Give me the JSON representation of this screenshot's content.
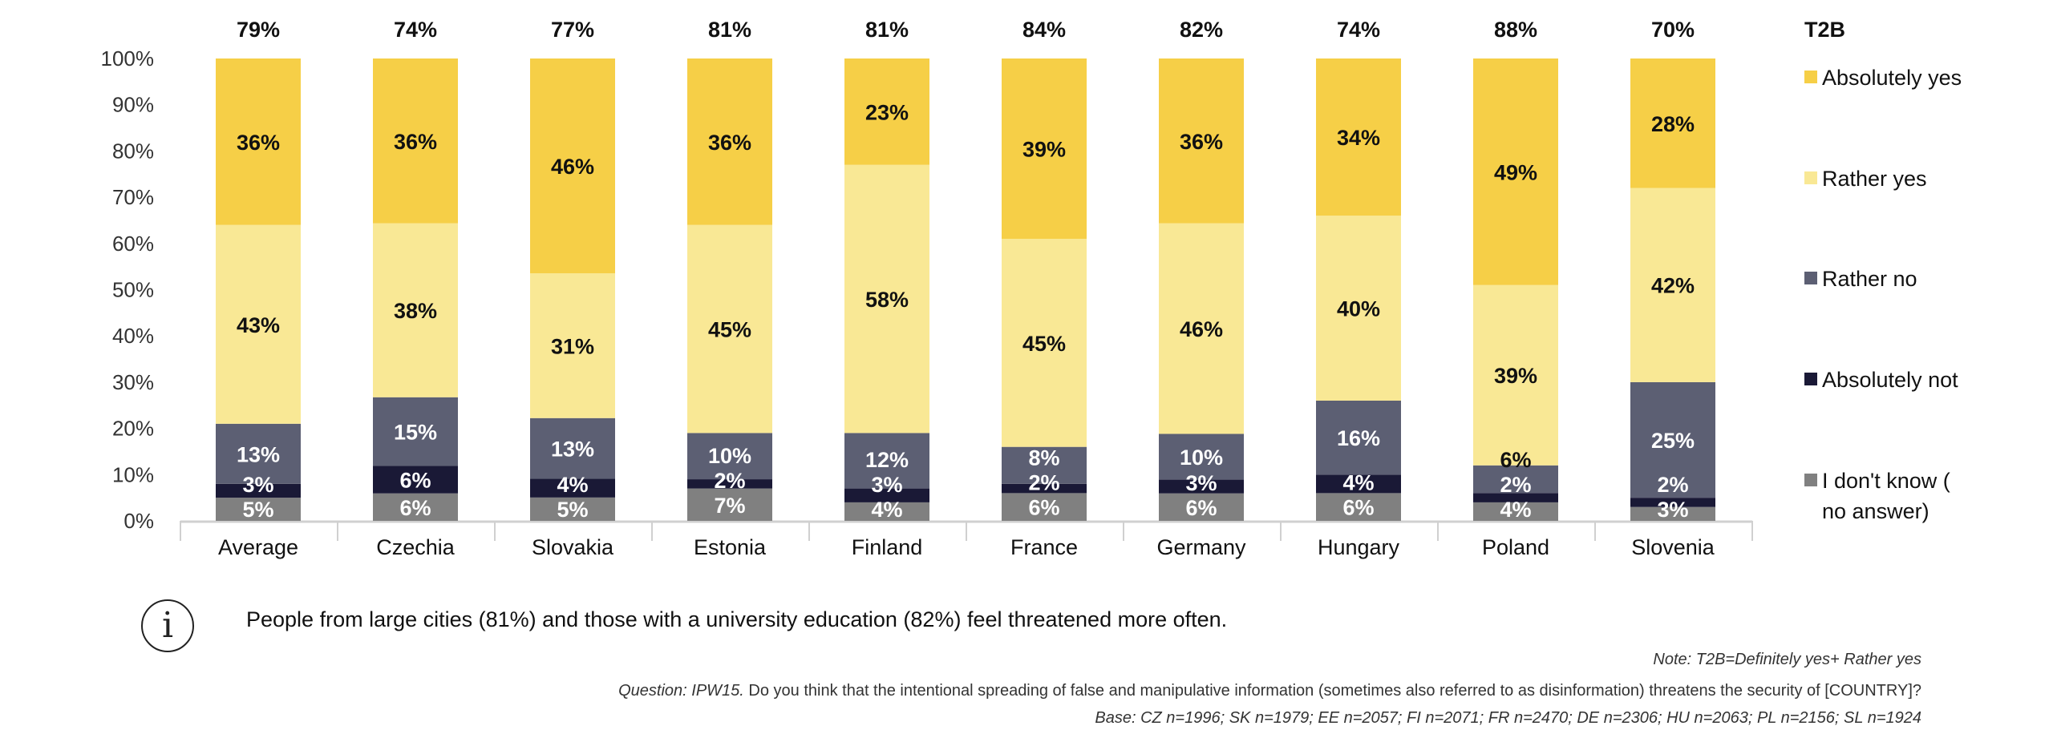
{
  "chart_data": {
    "type": "bar",
    "stacked": true,
    "title": "",
    "xlabel": "",
    "ylabel": "",
    "ylim": [
      0,
      100
    ],
    "yticks": [
      "0%",
      "10%",
      "20%",
      "30%",
      "40%",
      "50%",
      "60%",
      "70%",
      "80%",
      "90%",
      "100%"
    ],
    "categories": [
      "Average",
      "Czechia",
      "Slovakia",
      "Estonia",
      "Finland",
      "France",
      "Germany",
      "Hungary",
      "Poland",
      "Slovenia"
    ],
    "series": [
      {
        "name": "I don't know (no answer)",
        "color": "#808080",
        "label_color": "#ffffff",
        "values": [
          5,
          6,
          5,
          7,
          4,
          6,
          6,
          6,
          4,
          3
        ]
      },
      {
        "name": "Absolutely not",
        "color": "#1A1936",
        "label_color": "#ffffff",
        "values": [
          3,
          6,
          4,
          2,
          3,
          2,
          3,
          4,
          2,
          2
        ]
      },
      {
        "name": "Rather no",
        "color": "#5C5F73",
        "label_color": "#ffffff",
        "values": [
          13,
          15,
          13,
          10,
          12,
          8,
          10,
          16,
          6,
          25
        ]
      },
      {
        "name": "Rather yes",
        "color": "#F9E895",
        "label_color": "#111111",
        "values": [
          43,
          38,
          31,
          45,
          58,
          45,
          46,
          40,
          39,
          42
        ]
      },
      {
        "name": "Absolutely yes",
        "color": "#F6CF47",
        "label_color": "#111111",
        "values": [
          36,
          36,
          46,
          36,
          23,
          39,
          36,
          34,
          49,
          28
        ]
      }
    ],
    "t2b": {
      "label": "T2B",
      "values": [
        "79%",
        "74%",
        "77%",
        "81%",
        "81%",
        "84%",
        "82%",
        "74%",
        "88%",
        "70%"
      ]
    },
    "legend": {
      "placement": "right",
      "order": [
        "Absolutely yes",
        "Rather yes",
        "Rather no",
        "Absolutely not",
        "I don't know (no answer)"
      ]
    },
    "grid": false
  },
  "footer": {
    "info_text": "People from large cities (81%) and those with a university education (82%) feel threatened more often.",
    "note": "Note: T2B=Definitely yes+ Rather yes",
    "question_label": "Question: IPW15.",
    "question_text": " Do you think that the intentional spreading of false and manipulative information (sometimes also referred to as disinformation) threatens the security of [COUNTRY]?",
    "base": "Base: CZ n=1996; SK n=1979; EE n=2057; FI n=2071; FR n=2470; DE n=2306; HU n=2063; PL n=2156; SL n=1924"
  }
}
